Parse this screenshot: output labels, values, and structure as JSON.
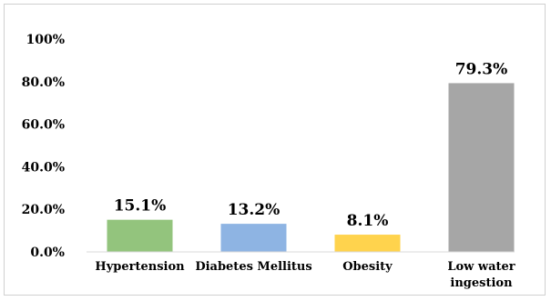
{
  "chart_data": {
    "type": "bar",
    "title": "",
    "xlabel": "",
    "ylabel": "",
    "categories": [
      "Hypertension",
      "Diabetes Mellitus",
      "Obesity",
      "Low water ingestion"
    ],
    "category_lines": [
      [
        "Hypertension"
      ],
      [
        "Diabetes Mellitus"
      ],
      [
        "Obesity"
      ],
      [
        "Low water",
        "ingestion"
      ]
    ],
    "values": [
      15.1,
      13.2,
      8.1,
      79.3
    ],
    "value_labels": [
      "15.1%",
      "13.2%",
      "8.1%",
      "79.3%"
    ],
    "bar_colors": [
      "#93c47d",
      "#8eb4e3",
      "#ffd34d",
      "#a6a6a6"
    ],
    "ylim": [
      0,
      100
    ],
    "yticks": [
      0,
      20,
      40,
      60,
      80,
      100
    ],
    "ytick_labels": [
      "0.0%",
      "20.0%",
      "40.0%",
      "60.0%",
      "80.0%",
      "100%"
    ],
    "grid": false,
    "legend": "none"
  }
}
